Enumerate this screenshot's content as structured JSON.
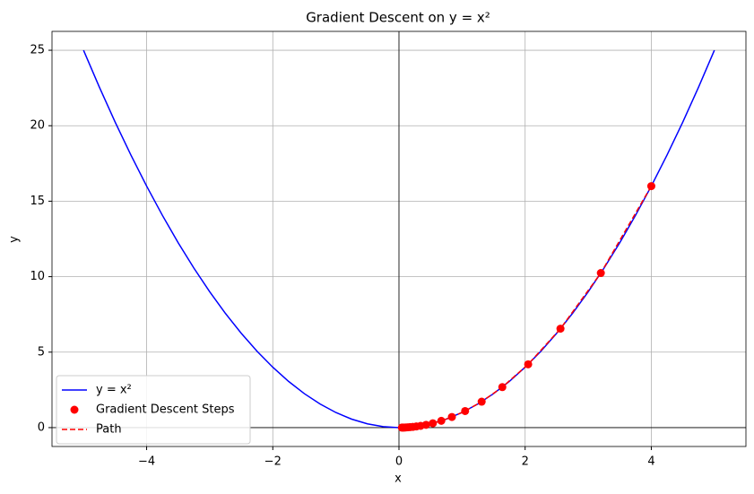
{
  "chart_data": {
    "type": "line",
    "title": "Gradient Descent on y = x²",
    "x_label": "x",
    "y_label": "y",
    "xlim": [
      -5.5,
      5.5
    ],
    "ylim": [
      -1.25,
      26.25
    ],
    "xticks": [
      {
        "value": -4,
        "label": "−4"
      },
      {
        "value": -2,
        "label": "−2"
      },
      0,
      2,
      4
    ],
    "yticks": [
      0,
      5,
      10,
      15,
      20,
      25
    ],
    "grid": true,
    "legend": "lower left",
    "series": [
      {
        "name": "y = x²",
        "type": "line",
        "color": "#0000ff",
        "x": [
          -5,
          -4.75,
          -4.5,
          -4.25,
          -4,
          -3.75,
          -3.5,
          -3.25,
          -3,
          -2.75,
          -2.5,
          -2.25,
          -2,
          -1.75,
          -1.5,
          -1.25,
          -1,
          -0.75,
          -0.5,
          -0.25,
          0,
          0.25,
          0.5,
          0.75,
          1,
          1.25,
          1.5,
          1.75,
          2,
          2.25,
          2.5,
          2.75,
          3,
          3.25,
          3.5,
          3.75,
          4,
          4.25,
          4.5,
          4.75,
          5
        ],
        "values": [
          25,
          22.5625,
          20.25,
          18.0625,
          16,
          14.0625,
          12.25,
          10.5625,
          9,
          7.5625,
          6.25,
          5.0625,
          4,
          3.0625,
          2.25,
          1.5625,
          1,
          0.5625,
          0.25,
          0.0625,
          0,
          0.0625,
          0.25,
          0.5625,
          1,
          1.5625,
          2.25,
          3.0625,
          4,
          5.0625,
          6.25,
          7.5625,
          9,
          10.5625,
          12.25,
          14.0625,
          16,
          18.0625,
          20.25,
          22.5625,
          25
        ]
      },
      {
        "name": "Gradient Descent Steps",
        "type": "scatter",
        "color": "#ff0000",
        "x": [
          4,
          3.2,
          2.56,
          2.048,
          1.6384,
          1.3107,
          1.0486,
          0.8389,
          0.6711,
          0.5369,
          0.4295,
          0.3436,
          0.2749,
          0.2199,
          0.1759,
          0.1407,
          0.1126,
          0.0901,
          0.0721,
          0.0576,
          0.0461
        ],
        "values": [
          16,
          10.24,
          6.5536,
          4.1943,
          2.6844,
          1.718,
          1.0995,
          0.7037,
          0.4504,
          0.2882,
          0.1845,
          0.1181,
          0.0756,
          0.0484,
          0.0309,
          0.0198,
          0.0127,
          0.0081,
          0.0052,
          0.0033,
          0.0021
        ]
      },
      {
        "name": "Path",
        "type": "dashed",
        "color": "#ff0000",
        "x": [
          4,
          3.2,
          2.56,
          2.048,
          1.6384,
          1.3107,
          1.0486,
          0.8389,
          0.6711,
          0.5369,
          0.4295,
          0.3436,
          0.2749,
          0.2199,
          0.1759,
          0.1407,
          0.1126,
          0.0901,
          0.0721,
          0.0576,
          0.0461
        ],
        "values": [
          16,
          10.24,
          6.5536,
          4.1943,
          2.6844,
          1.718,
          1.0995,
          0.7037,
          0.4504,
          0.2882,
          0.1845,
          0.1181,
          0.0756,
          0.0484,
          0.0309,
          0.0198,
          0.0127,
          0.0081,
          0.0052,
          0.0033,
          0.0021
        ]
      }
    ]
  }
}
